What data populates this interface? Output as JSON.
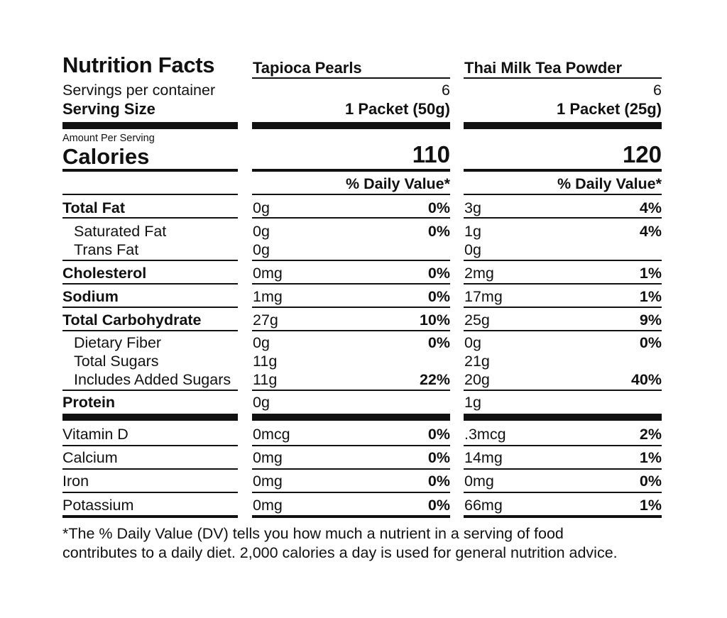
{
  "title": "Nutrition Facts",
  "servings_label": "Servings per container",
  "serving_size_label": "Serving Size",
  "amount_per_serving_label": "Amount Per Serving",
  "calories_label": "Calories",
  "dv_header": "% Daily Value*",
  "products": [
    {
      "name": "Tapioca Pearls",
      "servings": "6",
      "serving_size": "1 Packet (50g)",
      "calories": "110"
    },
    {
      "name": "Thai Milk Tea Powder",
      "servings": "6",
      "serving_size": "1 Packet (25g)",
      "calories": "120"
    }
  ],
  "nutrients": [
    {
      "label": "Total Fat",
      "amounts": [
        "0g",
        "3g"
      ],
      "dv": [
        "0%",
        "4%"
      ]
    },
    {
      "label": "Saturated Fat",
      "amounts": [
        "0g",
        "1g"
      ],
      "dv": [
        "0%",
        "4%"
      ]
    },
    {
      "label": "Trans Fat",
      "amounts": [
        "0g",
        "0g"
      ],
      "dv": [
        "",
        ""
      ]
    },
    {
      "label": "Cholesterol",
      "amounts": [
        "0mg",
        "2mg"
      ],
      "dv": [
        "0%",
        "1%"
      ]
    },
    {
      "label": "Sodium",
      "amounts": [
        "1mg",
        "17mg"
      ],
      "dv": [
        "0%",
        "1%"
      ]
    },
    {
      "label": "Total Carbohydrate",
      "amounts": [
        "27g",
        "25g"
      ],
      "dv": [
        "10%",
        "9%"
      ]
    },
    {
      "label": "Dietary Fiber",
      "amounts": [
        "0g",
        "0g"
      ],
      "dv": [
        "0%",
        "0%"
      ]
    },
    {
      "label": "Total Sugars",
      "amounts": [
        "11g",
        "21g"
      ],
      "dv": [
        "",
        ""
      ]
    },
    {
      "label": "Includes Added Sugars",
      "amounts": [
        "11g",
        "20g"
      ],
      "dv": [
        "22%",
        "40%"
      ]
    },
    {
      "label": "Protein",
      "amounts": [
        "0g",
        "1g"
      ],
      "dv": [
        "",
        ""
      ]
    }
  ],
  "vitamins": [
    {
      "label": "Vitamin D",
      "amounts": [
        "0mcg",
        ".3mcg"
      ],
      "dv": [
        "0%",
        "2%"
      ]
    },
    {
      "label": "Calcium",
      "amounts": [
        "0mg",
        "14mg"
      ],
      "dv": [
        "0%",
        "1%"
      ]
    },
    {
      "label": "Iron",
      "amounts": [
        "0mg",
        "0mg"
      ],
      "dv": [
        "0%",
        "0%"
      ]
    },
    {
      "label": "Potassium",
      "amounts": [
        "0mg",
        "66mg"
      ],
      "dv": [
        "0%",
        "1%"
      ]
    }
  ],
  "footnote_line1": "*The % Daily Value (DV) tells you how much a nutrient in a serving of food",
  "footnote_line2": "contributes to a daily diet. 2,000 calories a day is used for general nutrition advice."
}
